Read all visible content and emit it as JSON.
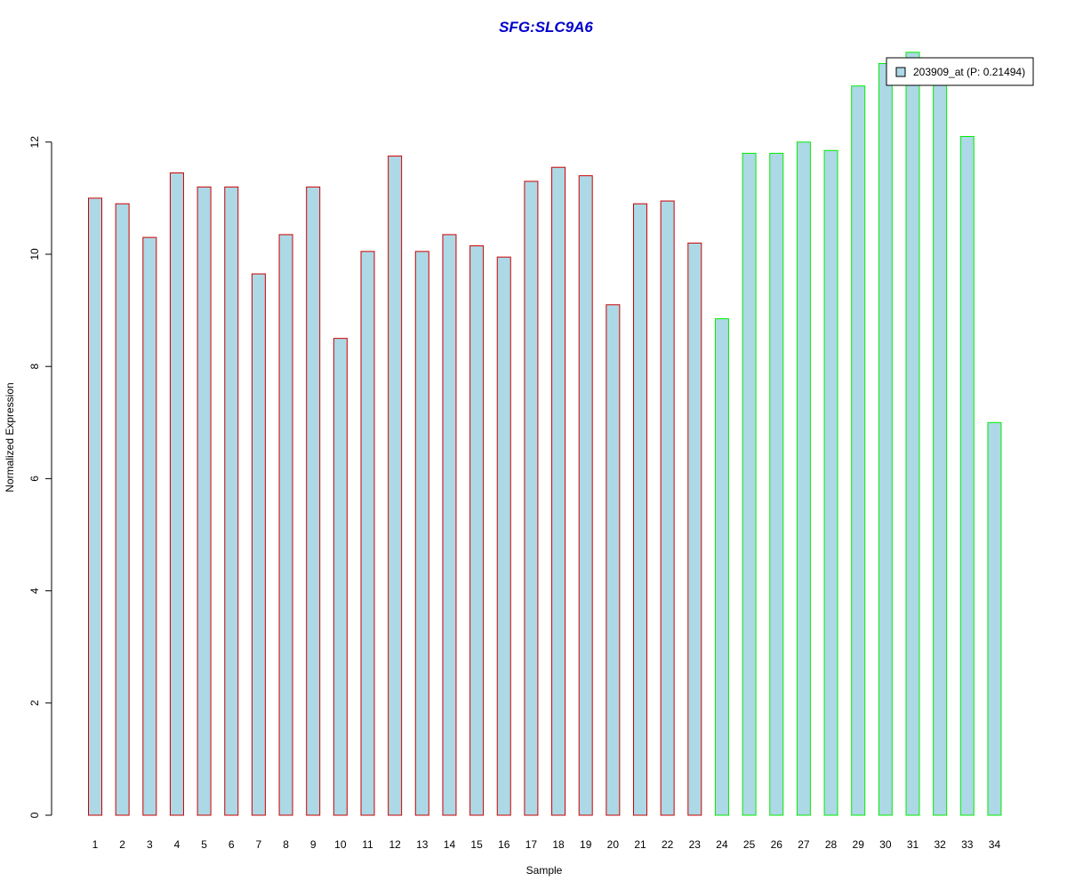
{
  "chart_data": {
    "type": "bar",
    "title": "SFG:SLC9A6",
    "xlabel": "Sample",
    "ylabel": "Normalized Expression",
    "categories": [
      "1",
      "2",
      "3",
      "4",
      "5",
      "6",
      "7",
      "8",
      "9",
      "10",
      "11",
      "12",
      "13",
      "14",
      "15",
      "16",
      "17",
      "18",
      "19",
      "20",
      "21",
      "22",
      "23",
      "24",
      "25",
      "26",
      "27",
      "28",
      "29",
      "30",
      "31",
      "32",
      "33",
      "34"
    ],
    "series": [
      {
        "name": "203909_at (P: 0.21494)",
        "values": [
          11.0,
          10.9,
          10.3,
          11.45,
          11.2,
          11.2,
          9.65,
          10.35,
          11.2,
          8.5,
          10.05,
          11.75,
          10.05,
          10.35,
          10.15,
          9.95,
          11.3,
          11.55,
          11.4,
          9.1,
          10.9,
          10.95,
          10.2,
          8.85,
          11.8,
          11.8,
          12.0,
          11.85,
          13.0,
          13.4,
          13.6,
          13.2,
          12.1,
          7.0
        ]
      }
    ],
    "group_sizes": [
      23,
      11
    ],
    "ylim": [
      0,
      13.6
    ],
    "yticks": [
      "0",
      "2",
      "4",
      "6",
      "8",
      "10",
      "12"
    ],
    "grid": false,
    "legend_position": "top-right",
    "colors": {
      "title": "#0000cc",
      "bar_fill": "#add8e6",
      "group1_border": "#cc0000",
      "group2_border": "#00ee00",
      "axis": "#000000"
    }
  }
}
